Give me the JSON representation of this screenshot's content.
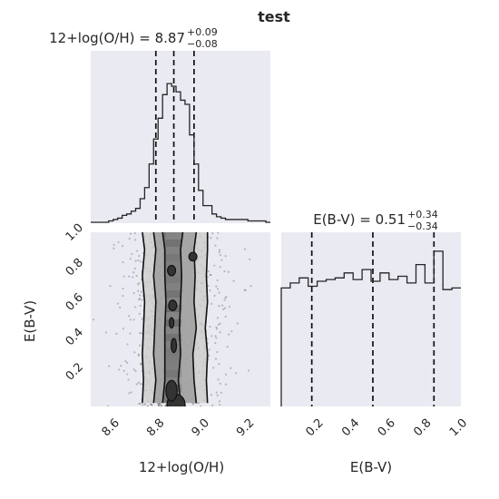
{
  "figure": {
    "title": "test"
  },
  "chart_data": [
    {
      "type": "histogram",
      "panel": "top-left",
      "title_main": "12+log(O/H) = 8.87",
      "title_sup": "+0.09",
      "title_sub": "−0.08",
      "x_range": [
        8.5,
        9.3
      ],
      "bin_edges": [
        8.5,
        8.52,
        8.54,
        8.56,
        8.58,
        8.6,
        8.62,
        8.64,
        8.66,
        8.68,
        8.7,
        8.72,
        8.74,
        8.76,
        8.78,
        8.8,
        8.82,
        8.84,
        8.86,
        8.88,
        8.9,
        8.92,
        8.94,
        8.96,
        8.98,
        9.0,
        9.02,
        9.04,
        9.06,
        9.08,
        9.1,
        9.12,
        9.14,
        9.16,
        9.18,
        9.2,
        9.22,
        9.24,
        9.26,
        9.28,
        9.3
      ],
      "counts": [
        0.0,
        0.0,
        0.0,
        0.0,
        0.01,
        0.02,
        0.03,
        0.05,
        0.06,
        0.08,
        0.1,
        0.17,
        0.25,
        0.42,
        0.6,
        0.75,
        0.92,
        1.0,
        0.98,
        0.94,
        0.88,
        0.85,
        0.63,
        0.42,
        0.23,
        0.12,
        0.12,
        0.06,
        0.04,
        0.03,
        0.02,
        0.02,
        0.02,
        0.02,
        0.02,
        0.01,
        0.01,
        0.01,
        0.01,
        0.0
      ],
      "quantiles": [
        8.79,
        8.87,
        8.96
      ]
    },
    {
      "type": "histogram",
      "panel": "bottom-right",
      "title_main": "E(B-V) = 0.51",
      "title_sup": "+0.34",
      "title_sub": "−0.34",
      "x_range": [
        0.0,
        1.0
      ],
      "xlabel": "E(B-V)",
      "xticks": [
        "0.2",
        "0.4",
        "0.6",
        "0.8",
        "1.0"
      ],
      "bin_edges": [
        0.0,
        0.05,
        0.1,
        0.15,
        0.2,
        0.25,
        0.3,
        0.35,
        0.4,
        0.45,
        0.5,
        0.55,
        0.6,
        0.65,
        0.7,
        0.75,
        0.8,
        0.85,
        0.9,
        0.95,
        1.0
      ],
      "counts": [
        0.71,
        0.74,
        0.77,
        0.72,
        0.75,
        0.76,
        0.77,
        0.8,
        0.76,
        0.82,
        0.75,
        0.8,
        0.76,
        0.78,
        0.74,
        0.85,
        0.74,
        0.93,
        0.7,
        0.71
      ],
      "quantiles": [
        0.17,
        0.51,
        0.85
      ]
    },
    {
      "type": "scatter",
      "panel": "bottom-left",
      "subtype": "2d-density-with-contours",
      "x_range": [
        8.5,
        9.3
      ],
      "y_range": [
        0.0,
        1.0
      ],
      "xlabel": "12+log(O/H)",
      "ylabel": "E(B-V)",
      "xticks": [
        "8.6",
        "8.8",
        "9.0",
        "9.2"
      ],
      "yticks": [
        "0.2",
        "0.4",
        "0.6",
        "0.8",
        "1.0"
      ],
      "contours": [
        {
          "level": "outer",
          "y": [
            0.02,
            0.15,
            0.3,
            0.45,
            0.6,
            0.75,
            0.9,
            1.0
          ],
          "x_left": [
            8.73,
            8.735,
            8.73,
            8.735,
            8.74,
            8.73,
            8.74,
            8.73
          ],
          "x_right": [
            9.02,
            9.015,
            9.02,
            9.01,
            9.02,
            9.015,
            9.02,
            9.02
          ]
        },
        {
          "level": "middle",
          "y": [
            0.02,
            0.15,
            0.3,
            0.45,
            0.6,
            0.75,
            0.9,
            1.0
          ],
          "x_left": [
            8.78,
            8.79,
            8.78,
            8.785,
            8.79,
            8.78,
            8.79,
            8.78
          ],
          "x_right": [
            8.97,
            8.96,
            8.955,
            8.97,
            8.96,
            8.965,
            8.96,
            8.97
          ]
        },
        {
          "level": "inner",
          "y": [
            0.02,
            0.15,
            0.3,
            0.45,
            0.6,
            0.75,
            0.9,
            1.0
          ],
          "x_left": [
            8.82,
            8.83,
            8.83,
            8.83,
            8.835,
            8.83,
            8.83,
            8.82
          ],
          "x_right": [
            8.9,
            8.89,
            8.9,
            8.895,
            8.9,
            8.905,
            8.9,
            8.91
          ]
        }
      ],
      "blobs": [
        {
          "x": 8.88,
          "y": 0.01,
          "rx": 0.04,
          "ry": 0.06
        },
        {
          "x": 8.86,
          "y": 0.09,
          "rx": 0.025,
          "ry": 0.06
        },
        {
          "x": 8.87,
          "y": 0.35,
          "rx": 0.012,
          "ry": 0.04
        },
        {
          "x": 8.86,
          "y": 0.48,
          "rx": 0.01,
          "ry": 0.03
        },
        {
          "x": 8.865,
          "y": 0.58,
          "rx": 0.018,
          "ry": 0.03
        },
        {
          "x": 8.86,
          "y": 0.78,
          "rx": 0.018,
          "ry": 0.03
        },
        {
          "x": 8.955,
          "y": 0.86,
          "rx": 0.018,
          "ry": 0.025
        }
      ]
    }
  ]
}
